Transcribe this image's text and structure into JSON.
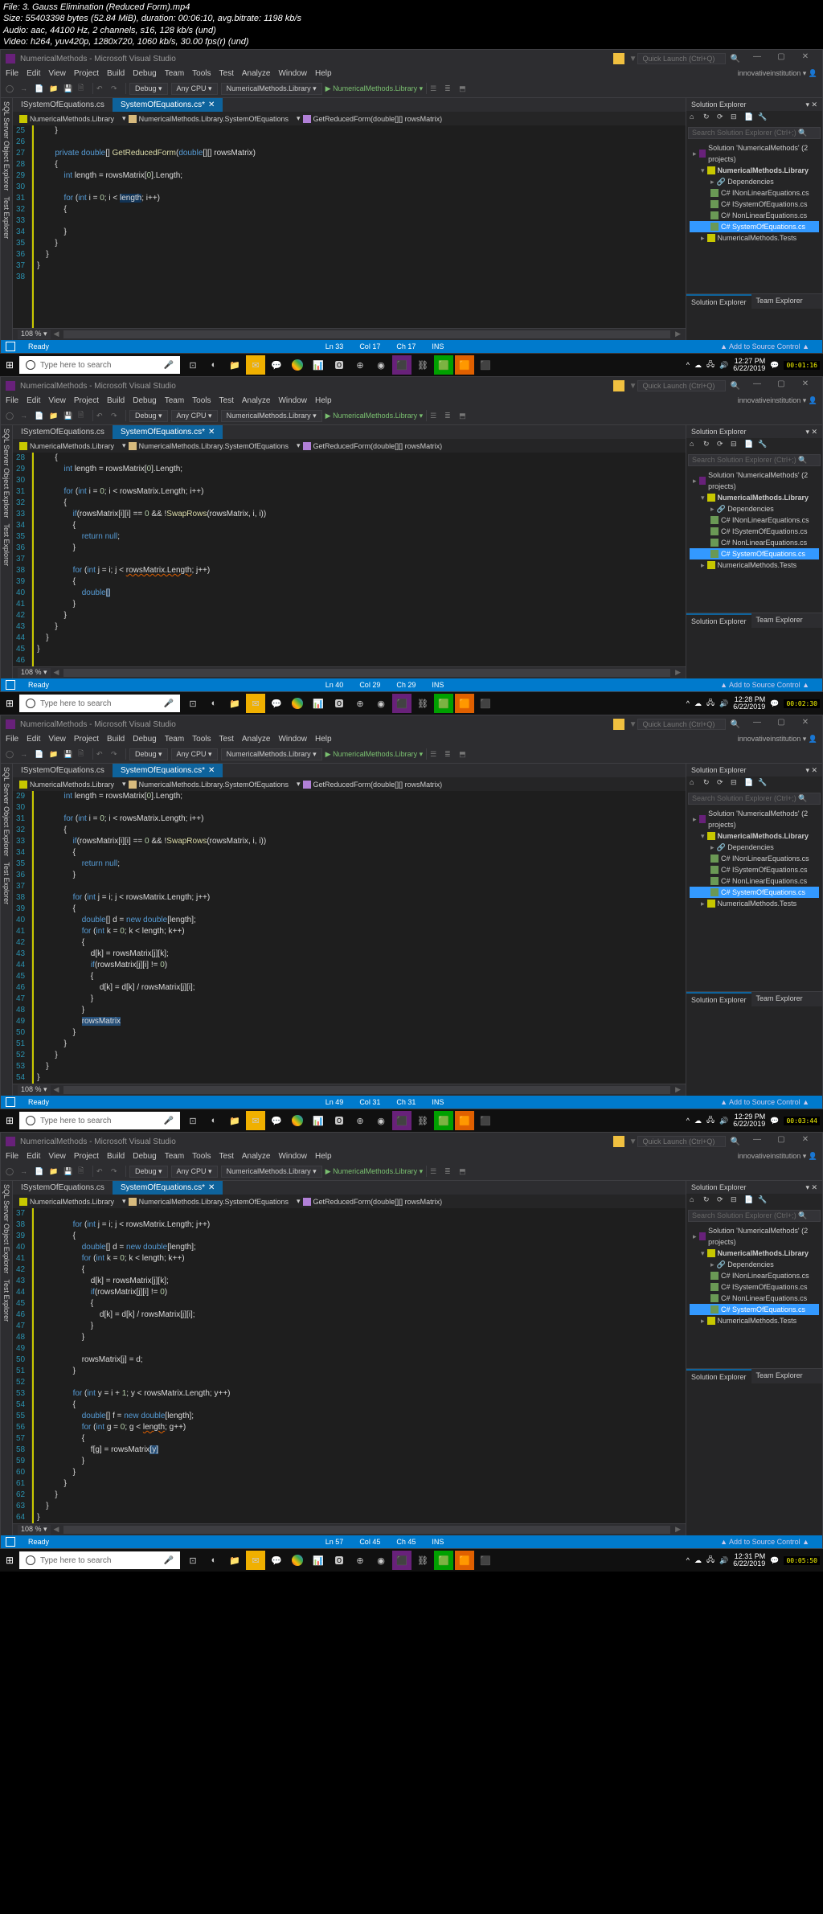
{
  "headerInfo": {
    "file": "File: 3. Gauss Elimination (Reduced Form).mp4",
    "size": "Size: 55403398 bytes (52.84 MiB), duration: 00:06:10, avg.bitrate: 1198 kb/s",
    "audio": "Audio: aac, 44100 Hz, 2 channels, s16, 128 kb/s (und)",
    "video": "Video: h264, yuv420p, 1280x720, 1060 kb/s, 30.00 fps(r) (und)"
  },
  "vsTitle": "NumericalMethods - Microsoft Visual Studio",
  "quickLaunch": "Quick Launch (Ctrl+Q)",
  "signin": "innovativeinstitution",
  "menus": [
    "File",
    "Edit",
    "View",
    "Project",
    "Build",
    "Debug",
    "Team",
    "Tools",
    "Test",
    "Analyze",
    "Window",
    "Help"
  ],
  "toolbar": {
    "config": "Debug",
    "platform": "Any CPU",
    "project": "NumericalMethods.Library",
    "startProject": "NumericalMethods.Library"
  },
  "tabs": {
    "inactive": "ISystemOfEquations.cs",
    "active": "SystemOfEquations.cs*"
  },
  "breadcrumb": {
    "c1": "NumericalMethods.Library",
    "c2": "NumericalMethods.Library.SystemOfEquations",
    "c3": "GetReducedForm(double[][] rowsMatrix)"
  },
  "solutionExplorer": {
    "title": "Solution Explorer",
    "search": "Search Solution Explorer (Ctrl+;)",
    "solution": "Solution 'NumericalMethods' (2 projects)",
    "proj1": "NumericalMethods.Library",
    "dep": "Dependencies",
    "f1": "INonLinearEquations.cs",
    "f2": "ISystemOfEquations.cs",
    "f3": "NonLinearEquations.cs",
    "f4": "SystemOfEquations.cs",
    "proj2": "NumericalMethods.Tests",
    "tabSE": "Solution Explorer",
    "tabTE": "Team Explorer"
  },
  "zoom": "108 %",
  "panels": [
    {
      "status": {
        "ready": "Ready",
        "ln": "Ln 33",
        "col": "Col 17",
        "ch": "Ch 17",
        "ins": "INS",
        "src": "▲ Add to Source Control ▲"
      },
      "time": "12:27 PM",
      "date": "6/22/2019",
      "stamp": "00:01:16",
      "lineStart": 25,
      "code": [
        "        }",
        "",
        "        <span class='kw'>private</span> <span class='kw'>double</span>[] <span class='method'>GetReducedForm</span>(<span class='kw'>double</span>[][] rowsMatrix)",
        "        {",
        "            <span class='kw'>int</span> length = rowsMatrix[<span class='num'>0</span>].Length;",
        "",
        "            <span class='kw'>for</span> (<span class='kw'>int</span> i = <span class='num'>0</span>; i &lt; <span style='background:#113355'>length</span>; i++)",
        "            {",
        "",
        "            }",
        "        }",
        "    }",
        "}",
        ""
      ]
    },
    {
      "status": {
        "ready": "Ready",
        "ln": "Ln 40",
        "col": "Col 29",
        "ch": "Ch 29",
        "ins": "INS",
        "src": "▲ Add to Source Control ▲"
      },
      "time": "12:28 PM",
      "date": "6/22/2019",
      "stamp": "00:02:30",
      "lineStart": 28,
      "code": [
        "        {",
        "            <span class='kw'>int</span> length = rowsMatrix[<span class='num'>0</span>].Length;",
        "",
        "            <span class='kw'>for</span> (<span class='kw'>int</span> i = <span class='num'>0</span>; i &lt; rowsMatrix.Length; i++)",
        "            {",
        "                <span class='kw'>if</span>(rowsMatrix[i][i] == <span class='num'>0</span> && !<span class='method'>SwapRows</span>(rowsMatrix, i, i))",
        "                {",
        "                    <span class='kw'>return</span> <span class='kw'>null</span>;",
        "                }",
        "",
        "                <span class='kw'>for</span> (<span class='kw'>int</span> <u style='text-decoration:underline wavy #6a9955'>j</u> = i; j &lt; <u style='text-decoration:underline wavy #e06000'>rowsMatrix.Length</u>; j++)",
        "                {",
        "                    <span class='kw'>double</span><span style='background:#113355'>[]</span>",
        "                }",
        "            }",
        "        }",
        "    }",
        "}",
        ""
      ]
    },
    {
      "status": {
        "ready": "Ready",
        "ln": "Ln 49",
        "col": "Col 31",
        "ch": "Ch 31",
        "ins": "INS",
        "src": "▲ Add to Source Control ▲"
      },
      "time": "12:29 PM",
      "date": "6/22/2019",
      "stamp": "00:03:44",
      "lineStart": 29,
      "code": [
        "            <span class='kw'>int</span> length = rowsMatrix[<span class='num'>0</span>].Length;",
        "",
        "            <span class='kw'>for</span> (<span class='kw'>int</span> i = <span class='num'>0</span>; i &lt; rowsMatrix.Length; i++)",
        "            {",
        "                <span class='kw'>if</span>(rowsMatrix[i][i] == <span class='num'>0</span> && !<span class='method'>SwapRows</span>(rowsMatrix, i, i))",
        "                {",
        "                    <span class='kw'>return</span> <span class='kw'>null</span>;",
        "                }",
        "",
        "                <span class='kw'>for</span> (<span class='kw'>int</span> j = i; j &lt; rowsMatrix.Length; j++)",
        "                {",
        "                    <span class='kw'>double</span>[] d = <span class='kw'>new</span> <span class='kw'>double</span>[length];",
        "                    <span class='kw'>for</span> (<span class='kw'>int</span> k = <span class='num'>0</span>; k &lt; length; k++)",
        "                    {",
        "                        d[k] = rowsMatrix[j][k];",
        "                        <span class='kw'>if</span>(rowsMatrix[j][i] != <span class='num'>0</span>)",
        "                        {",
        "                            d[k] = d[k] / rowsMatrix[j][i];",
        "                        }",
        "                    }",
        "                    <span style='background:#264f78'>rowsMatrix</span>",
        "                }",
        "            }",
        "        }",
        "    }",
        "}"
      ]
    },
    {
      "status": {
        "ready": "Ready",
        "ln": "Ln 57",
        "col": "Col 45",
        "ch": "Ch 45",
        "ins": "INS",
        "src": "▲ Add to Source Control ▲"
      },
      "time": "12:31 PM",
      "date": "6/22/2019",
      "stamp": "00:05:50",
      "lineStart": 37,
      "code": [
        "",
        "                <span class='kw'>for</span> (<span class='kw'>int</span> j = i; j &lt; rowsMatrix.Length; j++)",
        "                {",
        "                    <span class='kw'>double</span>[] d = <span class='kw'>new</span> <span class='kw'>double</span>[length];",
        "                    <span class='kw'>for</span> (<span class='kw'>int</span> k = <span class='num'>0</span>; k &lt; length; k++)",
        "                    {",
        "                        d[k] = rowsMatrix[j][k];",
        "                        <span class='kw'>if</span>(rowsMatrix[j][i] != <span class='num'>0</span>)",
        "                        {",
        "                            d[k] = d[k] / rowsMatrix[j][i];",
        "                        }",
        "                    }",
        "",
        "                    rowsMatrix[j] = d;",
        "                }",
        "",
        "                <span class='kw'>for</span> (<span class='kw'>int</span> y = i + <span class='num'>1</span>; y &lt; rowsMatrix.Length; y++)",
        "                {",
        "                    <span class='kw'>double</span>[] f = <span class='kw'>new</span> <span class='kw'>double</span>[length];",
        "                    <span class='kw'>for</span> (<span class='kw'>int</span> <u style='text-decoration:underline wavy #6a9955'>g</u> = <span class='num'>0</span>; g &lt; <u style='text-decoration:underline wavy #e06000'>length</u>; g++)",
        "                    {",
        "                        f[g] = rowsMatrix<span style='background:#264f78'>[y]</span>",
        "                    }",
        "                }",
        "            }",
        "        }",
        "    }",
        "}"
      ]
    }
  ],
  "searchPlaceholder": "Type here to search"
}
